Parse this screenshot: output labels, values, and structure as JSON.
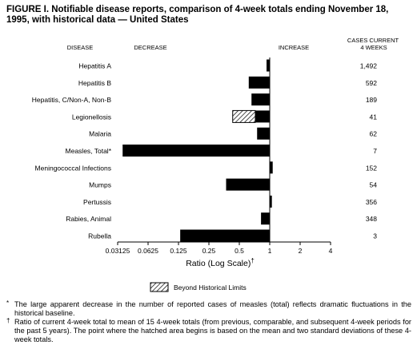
{
  "title": "FIGURE I. Notifiable disease reports, comparison of 4-week totals ending November 18, 1995, with historical data — United States",
  "chart_data": {
    "type": "bar",
    "orientation": "horizontal",
    "x_scale": "log2",
    "xlim": [
      0.03125,
      4
    ],
    "baseline": 1,
    "header_disease": "DISEASE",
    "header_decrease": "DECREASE",
    "header_increase": "INCREASE",
    "header_cases": "CASES CURRENT 4 WEEKS",
    "xlabel": "Ratio (Log Scale)",
    "xlabel_mark": "†",
    "tick_labels": [
      "0.03125",
      "0.0625",
      "0.125",
      "0.25",
      "0.5",
      "1",
      "2",
      "4"
    ],
    "tick_values": [
      0.03125,
      0.0625,
      0.125,
      0.25,
      0.5,
      1,
      2,
      4
    ],
    "legend_label": "Beyond Historical Limits",
    "categories": [
      "Hepatitis A",
      "Hepatitis B",
      "Hepatitis, C/Non-A, Non-B",
      "Legionellosis",
      "Malaria",
      "Measles, Total*",
      "Meningococcal Infections",
      "Mumps",
      "Pertussis",
      "Rabies, Animal",
      "Rubella"
    ],
    "values": [
      0.93,
      0.62,
      0.66,
      0.43,
      0.75,
      0.035,
      1.07,
      0.37,
      1.05,
      0.82,
      0.13
    ],
    "hatched_from": [
      null,
      null,
      null,
      0.72,
      null,
      null,
      null,
      null,
      null,
      null,
      null
    ],
    "cases": [
      "1,492",
      "592",
      "189",
      "41",
      "62",
      "7",
      "152",
      "54",
      "356",
      "348",
      "3"
    ]
  },
  "footnotes": [
    {
      "mark": "*",
      "text": "The large apparent decrease in the number of reported cases of measles (total) reflects dramatic fluctuations in the historical baseline."
    },
    {
      "mark": "†",
      "text": "Ratio of current 4-week total to mean of 15 4-week totals (from previous, comparable, and subsequent 4-week periods for the past 5 years). The point where the hatched area begins is based on the mean and two standard deviations of these 4-week totals."
    }
  ]
}
